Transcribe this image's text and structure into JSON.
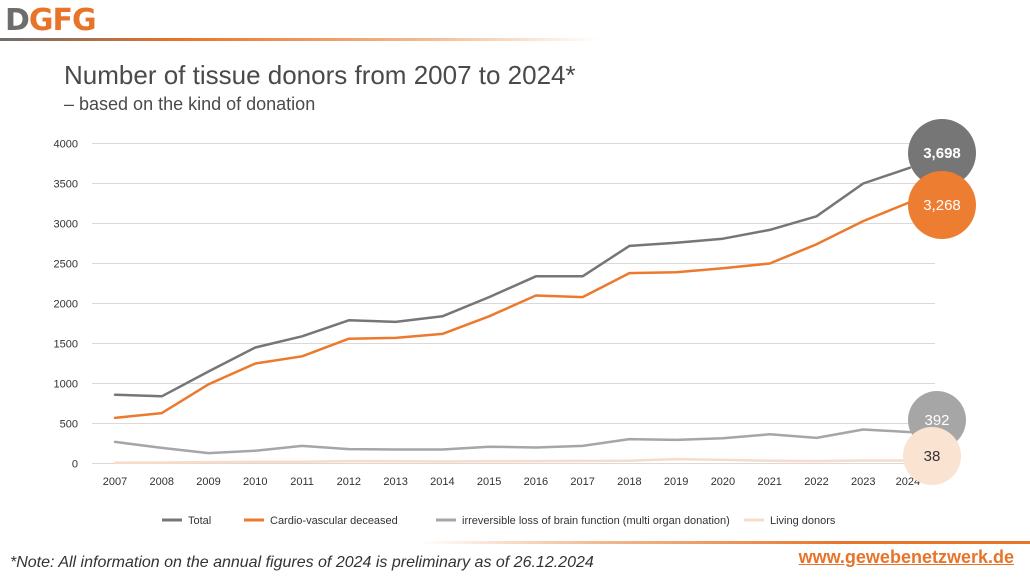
{
  "logo": {
    "d": "D",
    "g": "G",
    "f": "F",
    "g2": "G"
  },
  "header": {
    "title": "Number of tissue donors from 2007 to 2024*",
    "subtitle": "– based on the kind of donation"
  },
  "footer": {
    "note": "*Note: All information on the annual figures of 2024 is preliminary as of 26.12.2024",
    "website": "www.gewebenetzwerk.de"
  },
  "chart_data": {
    "type": "line",
    "title": "Number of tissue donors from 2007 to 2024*",
    "subtitle": "– based on the kind of donation",
    "x": [
      "2007",
      "2008",
      "2009",
      "2010",
      "2011",
      "2012",
      "2013",
      "2014",
      "2015",
      "2016",
      "2017",
      "2018",
      "2019",
      "2020",
      "2021",
      "2022",
      "2023",
      "2024*"
    ],
    "ylim": [
      0,
      4000
    ],
    "yticks": [
      0,
      500,
      1000,
      1500,
      2000,
      2500,
      3000,
      3500,
      4000
    ],
    "ytick_labels": [
      "0",
      "500",
      "1000",
      "1500",
      "2000",
      "2500",
      "3000",
      "3500",
      "4000"
    ],
    "grid": true,
    "legend_position": "bottom",
    "series": [
      {
        "name": "Total",
        "color": "#767676",
        "values": [
          860,
          840,
          1150,
          1450,
          1590,
          1790,
          1770,
          1840,
          2080,
          2340,
          2340,
          2720,
          2760,
          2810,
          2920,
          3090,
          3500,
          3698
        ],
        "end_label": "3,698",
        "bubble_color": "#767676"
      },
      {
        "name": "Cardio-vascular deceased",
        "color": "#ec7a2e",
        "values": [
          570,
          630,
          990,
          1250,
          1340,
          1560,
          1570,
          1620,
          1840,
          2100,
          2080,
          2380,
          2390,
          2440,
          2500,
          2740,
          3030,
          3268
        ],
        "end_label": "3,268",
        "bubble_color": "#ed7d31"
      },
      {
        "name": "irreversible loss of brain function (multi organ donation)",
        "color": "#a6a6a6",
        "values": [
          270,
          195,
          130,
          160,
          220,
          180,
          175,
          175,
          210,
          200,
          220,
          305,
          295,
          315,
          365,
          320,
          425,
          392
        ],
        "end_label": "392",
        "bubble_color": "#a6a6a6"
      },
      {
        "name": "Living donors",
        "color": "#f8dcc8",
        "values": [
          10,
          12,
          18,
          22,
          22,
          30,
          28,
          25,
          28,
          30,
          32,
          35,
          55,
          45,
          35,
          30,
          38,
          38
        ],
        "end_label": "38",
        "bubble_color": "#fbe3d2",
        "end_label_color": "#333333"
      }
    ]
  }
}
